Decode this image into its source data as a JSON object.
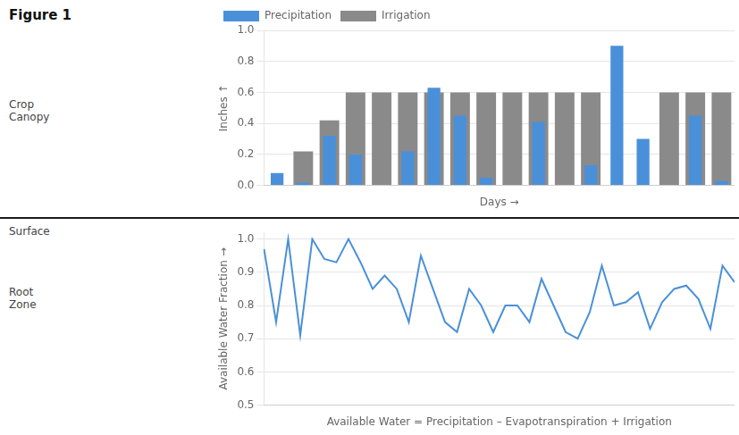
{
  "chart_data": [
    {
      "type": "bar",
      "title": "Figure 1",
      "annotations": [
        "Crop\nCanopy",
        "Surface",
        "Root\nZone"
      ],
      "xlabel": "Days →",
      "ylabel": "Inches ↑",
      "categories": [
        null,
        null,
        null,
        null,
        null,
        null,
        null,
        null,
        null,
        null,
        null,
        null,
        null,
        null,
        null,
        null,
        null,
        null
      ],
      "series": [
        {
          "name": "Precipitation",
          "color": "#4a90d9",
          "values": [
            0.08,
            0.02,
            0.32,
            0.2,
            0.0,
            0.22,
            0.63,
            0.45,
            0.05,
            0.0,
            0.41,
            0.0,
            0.13,
            0.9,
            0.3,
            0.0,
            0.45,
            0.03
          ]
        },
        {
          "name": "Irrigation",
          "color": "#8a8a8a",
          "values": [
            0.0,
            0.22,
            0.42,
            0.6,
            0.6,
            0.6,
            0.6,
            0.6,
            0.6,
            0.6,
            0.6,
            0.6,
            0.6,
            0.0,
            0.0,
            0.6,
            0.6,
            0.6
          ]
        }
      ],
      "ylim": [
        0,
        1.0
      ],
      "yticks": [
        {
          "value": 0,
          "label": "0.0"
        },
        0.2,
        0.4,
        0.6,
        0.8,
        {
          "value": 1.0,
          "label": "1.0"
        }
      ],
      "grid": true,
      "legend": "upper left",
      "tick_labels": "y"
    },
    {
      "type": "line",
      "xlabel": "Available Water = Precipitation – Evapotranspiration + Irrigation",
      "ylabel": "Available Water Fraction →",
      "categories": [
        null,
        null,
        null,
        null,
        null,
        null,
        null,
        null,
        null,
        null,
        null,
        null,
        null,
        null,
        null,
        null,
        null,
        null,
        null,
        null,
        null,
        null,
        null,
        null,
        null,
        null,
        null,
        null,
        null,
        null,
        null,
        null,
        null,
        null,
        null,
        null,
        null,
        null,
        null,
        null
      ],
      "values": [
        0.97,
        0.75,
        1.0,
        0.71,
        1.0,
        0.94,
        0.93,
        1.0,
        0.93,
        0.85,
        0.89,
        0.85,
        0.75,
        0.95,
        0.85,
        0.75,
        0.72,
        0.85,
        0.8,
        0.72,
        0.8,
        0.8,
        0.75,
        0.88,
        0.8,
        0.72,
        0.7,
        0.78,
        0.92,
        0.8,
        0.81,
        0.84,
        0.73,
        0.81,
        0.85,
        0.86,
        0.82,
        0.73,
        0.92,
        0.87
      ],
      "color": "#4a90d9",
      "ylim": [
        0.5,
        1.02
      ],
      "yticks": [
        0.5,
        0.6,
        0.7,
        0.8,
        0.9,
        {
          "value": 1.0,
          "label": "1.0"
        }
      ],
      "grid": true,
      "tick_labels": "y"
    }
  ]
}
